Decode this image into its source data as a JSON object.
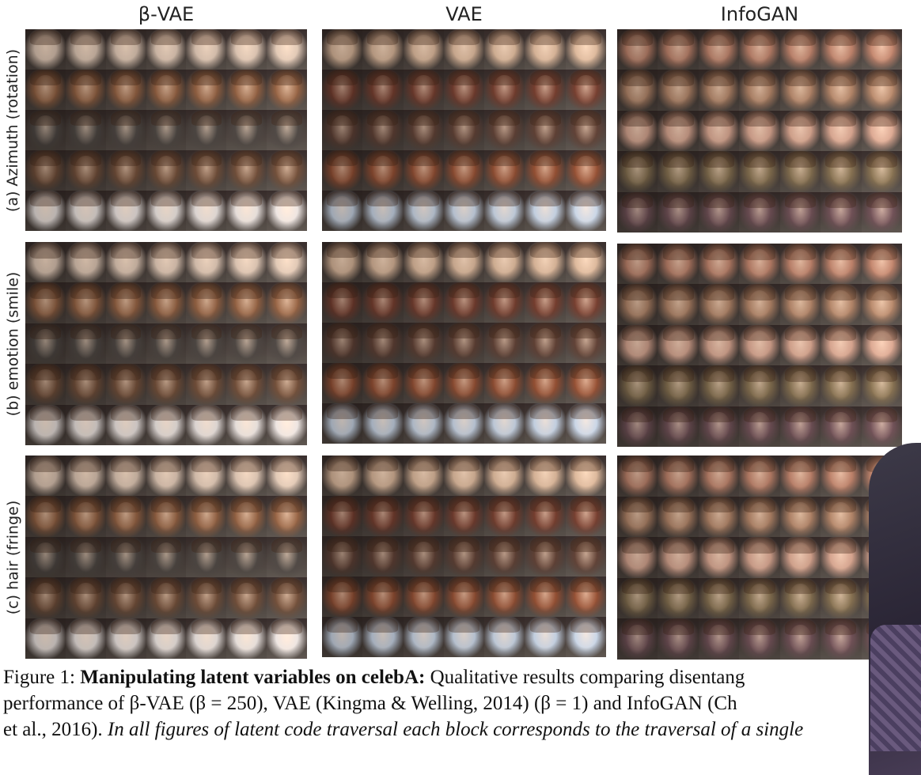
{
  "figure": {
    "columns": [
      {
        "id": "beta-vae",
        "title": "β-VAE"
      },
      {
        "id": "vae",
        "title": "VAE"
      },
      {
        "id": "infogan",
        "title": "InfoGAN"
      }
    ],
    "rows": [
      {
        "id": "azimuth",
        "label": "(a) Azimuth (rotation)"
      },
      {
        "id": "emotion",
        "label": "(b) emotion (smile)"
      },
      {
        "id": "hair",
        "label": "(c) hair (fringe)"
      }
    ],
    "grid_size": {
      "rows_per_block": 5,
      "images_per_row": 7
    },
    "tones": {
      "beta-vae": [
        "#cdb7a6",
        "#8a5b3e",
        "#4a4440",
        "#6b4a36",
        "#d9d2cf"
      ],
      "vae": [
        "#c9a88e",
        "#6e3a2c",
        "#5a3d32",
        "#8a4a30",
        "#b8c4d4"
      ],
      "infogan": [
        "#b27a64",
        "#a87d62",
        "#c99a86",
        "#7e6a4c",
        "#6a4c52"
      ]
    }
  },
  "caption": {
    "label": "Figure 1:",
    "title": "Manipulating latent variables on celebA:",
    "line1_rest": "Qualitative results comparing disentang",
    "line2": "performance of β-VAE (β = 250), VAE (Kingma & Welling, 2014) (β = 1) and InfoGAN (Ch",
    "line3_plain": "et al., 2016).",
    "line3_italic": "In all figures of latent code traversal each block corresponds to the traversal of a single"
  }
}
